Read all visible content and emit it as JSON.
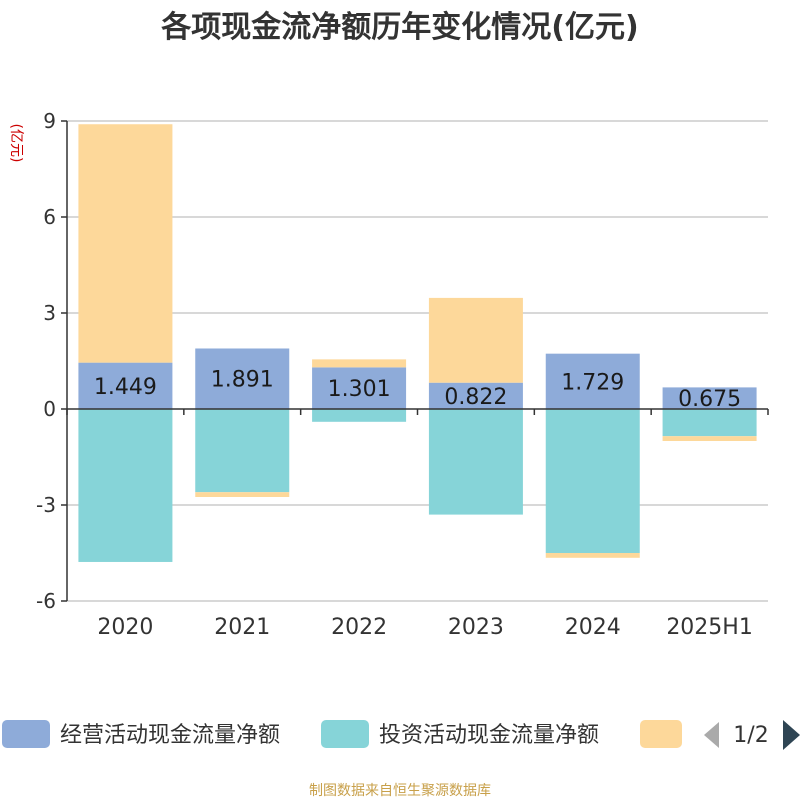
{
  "chart_data": {
    "type": "bar",
    "stacked": true,
    "title": "各项现金流净额历年变化情况(亿元)",
    "ylabel": "(亿元)",
    "xlabel": "",
    "categories": [
      "2020",
      "2021",
      "2022",
      "2023",
      "2024",
      "2025H1"
    ],
    "ylim": [
      -6,
      9
    ],
    "yticks": [
      "9",
      "6",
      "3",
      "0",
      "-3",
      "-6"
    ],
    "grid": true,
    "series": [
      {
        "name": "经营活动现金流量净额",
        "color": "#8eabd9",
        "values": [
          1.449,
          1.891,
          1.301,
          0.822,
          1.729,
          0.675
        ],
        "labels": [
          "1.449",
          "1.891",
          "1.301",
          "0.822",
          "1.729",
          "0.675"
        ]
      },
      {
        "name": "投资活动现金流量净额",
        "color": "#86d4d8",
        "values": [
          -4.78,
          -2.6,
          -0.4,
          -3.3,
          -4.5,
          -0.85
        ]
      },
      {
        "name": "",
        "color": "#fdd89a",
        "values": [
          7.45,
          -0.15,
          0.25,
          2.65,
          -0.15,
          -0.15
        ]
      }
    ],
    "legend_position": "bottom",
    "legend_page": "1/2"
  },
  "footer": {
    "source": "制图数据来自恒生聚源数据库"
  },
  "colors": {
    "axis": "#333333",
    "grid": "#cccccc",
    "nav_prev": "#aaaaaa",
    "nav_next": "#2f4554"
  },
  "icons": {
    "prev": "triangle-left-icon",
    "next": "triangle-right-icon"
  }
}
